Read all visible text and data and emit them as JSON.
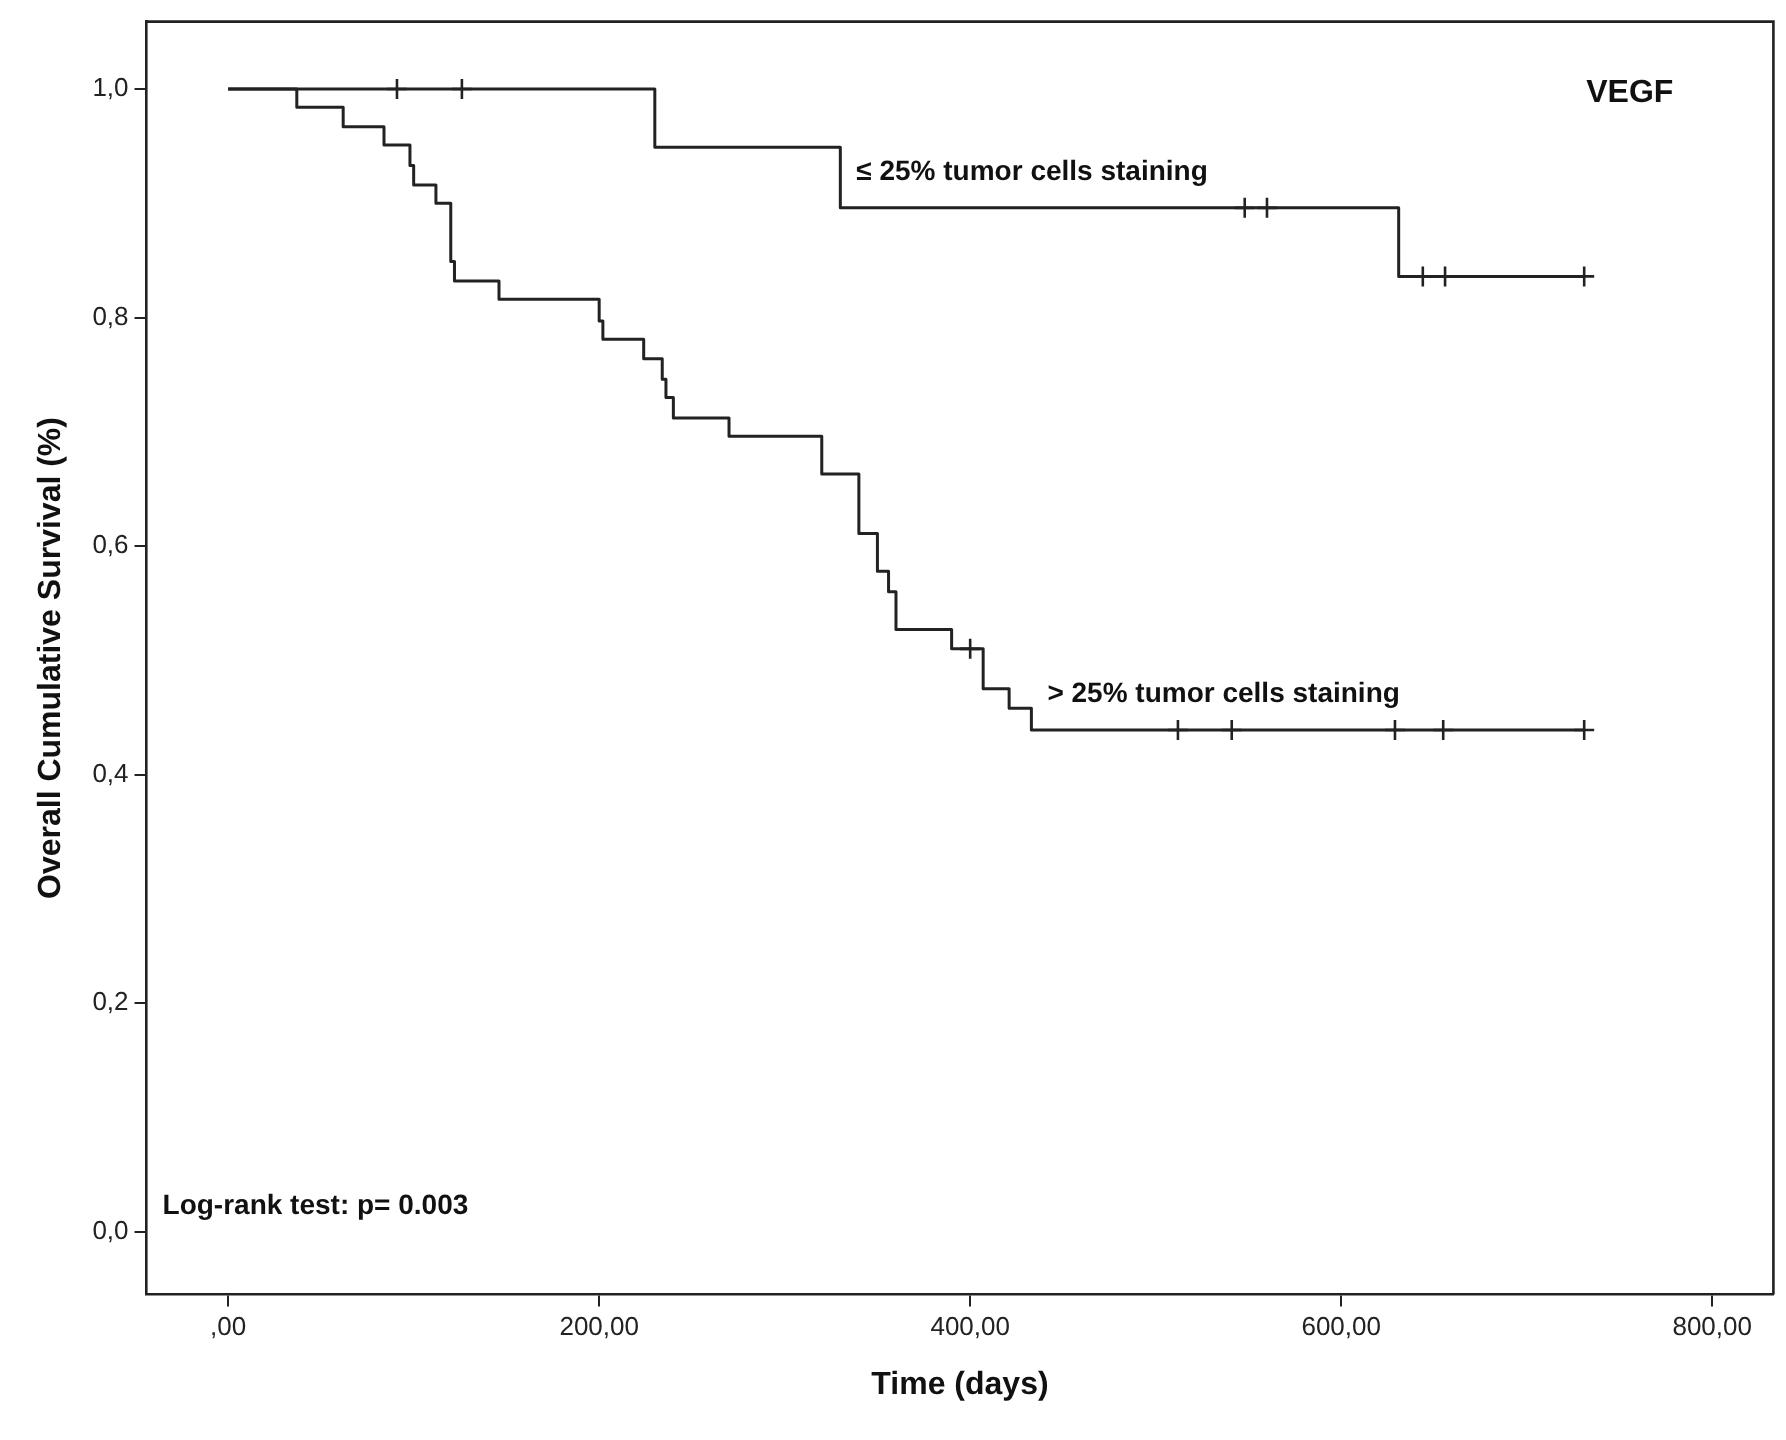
{
  "chart_data": {
    "type": "step",
    "xlabel": "Time (days)",
    "ylabel": "Overall Cumulative Survival (%)",
    "xlim": [
      -44,
      833
    ],
    "ylim": [
      -0.055,
      1.059
    ],
    "xticks": [
      {
        "value": 0,
        "label": ",00"
      },
      {
        "value": 200,
        "label": "200,00"
      },
      {
        "value": 400,
        "label": "400,00"
      },
      {
        "value": 600,
        "label": "600,00"
      },
      {
        "value": 800,
        "label": "800,00"
      }
    ],
    "yticks": [
      {
        "value": 0,
        "label": "0,0"
      },
      {
        "value": 0.2,
        "label": "0,2"
      },
      {
        "value": 0.4,
        "label": "0,4"
      },
      {
        "value": 0.6,
        "label": "0,6"
      },
      {
        "value": 0.8,
        "label": "0,8"
      },
      {
        "value": 1,
        "label": "1,0"
      }
    ],
    "grid": false,
    "legend": false,
    "annotations": [
      "VEGF",
      "Log-rank test: p= 0.003"
    ],
    "series": [
      {
        "name": "≤ 25% tumor cells staining",
        "type": "step",
        "color": "#222222",
        "x": [
          0,
          230,
          330,
          631,
          731
        ],
        "values": [
          1,
          0.949,
          0.896,
          0.836,
          0.836
        ]
      },
      {
        "name": "> 25% tumor cells staining",
        "type": "step",
        "color": "#222222",
        "x": [
          0,
          37,
          62,
          84,
          98,
          100,
          112,
          120,
          122,
          146,
          200,
          202,
          224,
          234,
          236,
          240,
          270,
          320,
          340,
          350,
          356,
          360,
          390,
          407,
          421,
          433,
          731
        ],
        "values": [
          1,
          0.984,
          0.967,
          0.951,
          0.933,
          0.916,
          0.9,
          0.849,
          0.832,
          0.816,
          0.797,
          0.781,
          0.764,
          0.746,
          0.73,
          0.712,
          0.696,
          0.663,
          0.611,
          0.578,
          0.56,
          0.527,
          0.51,
          0.475,
          0.458,
          0.439,
          0.439
        ]
      },
      {
        "type": "scatter",
        "marker": "cross",
        "color": "#222222",
        "x": [
          91,
          126,
          548,
          560,
          644,
          656,
          731
        ],
        "values": [
          1,
          1,
          0.896,
          0.896,
          0.836,
          0.836,
          0.836
        ]
      },
      {
        "type": "scatter",
        "marker": "cross",
        "color": "#222222",
        "x": [
          400,
          512,
          541,
          629,
          655,
          731
        ],
        "values": [
          0.51,
          0.439,
          0.439,
          0.439,
          0.439,
          0.439
        ]
      }
    ]
  }
}
